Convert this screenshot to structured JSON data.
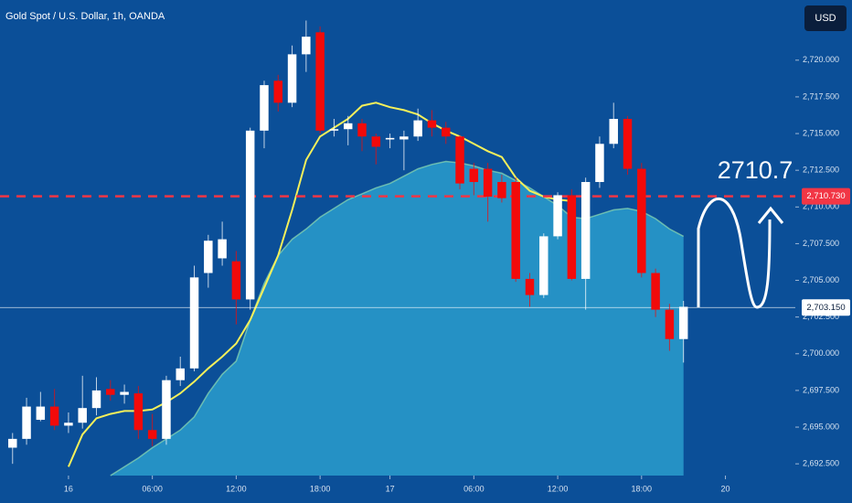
{
  "chart_data": {
    "type": "candlestick",
    "title": "Gold Spot / U.S. Dollar, 1h, OANDA",
    "currency": "USD",
    "annotation": "2710.7",
    "up_color": "#ffffff",
    "down_color": "#f20a0a",
    "background": "#0b4f98",
    "grid": false,
    "xlim": [
      -0.9,
      56.0
    ],
    "ylim": [
      2691.7,
      2724.1
    ],
    "xticks": [
      {
        "value": 4,
        "label": "16"
      },
      {
        "value": 10,
        "label": "06:00"
      },
      {
        "value": 16,
        "label": "12:00"
      },
      {
        "value": 22,
        "label": "18:00"
      },
      {
        "value": 27,
        "label": "17"
      },
      {
        "value": 33,
        "label": "06:00"
      },
      {
        "value": 39,
        "label": "12:00"
      },
      {
        "value": 45,
        "label": "18:00"
      },
      {
        "value": 51,
        "label": "20"
      }
    ],
    "yticks": [
      {
        "value": 2692.5,
        "label": "2,692.500"
      },
      {
        "value": 2695,
        "label": "2,695.000"
      },
      {
        "value": 2697.5,
        "label": "2,697.500"
      },
      {
        "value": 2700,
        "label": "2,700.000"
      },
      {
        "value": 2702.5,
        "label": "2,702.500"
      },
      {
        "value": 2705,
        "label": "2,705.000"
      },
      {
        "value": 2707.5,
        "label": "2,707.500"
      },
      {
        "value": 2710,
        "label": "2,710.000"
      },
      {
        "value": 2712.5,
        "label": "2,712.500"
      },
      {
        "value": 2715,
        "label": "2,715.000"
      },
      {
        "value": 2717.5,
        "label": "2,717.500"
      },
      {
        "value": 2720,
        "label": "2,720.000"
      }
    ],
    "last_price": {
      "value": 2703.15,
      "label": "2,703.150",
      "color": "#ffffff"
    },
    "level": {
      "value": 2710.73,
      "label": "2,710.730",
      "color": "#f23645"
    },
    "open": [
      2693.6,
      2694.2,
      2695.5,
      2696.4,
      2695.1,
      2695.3,
      2696.3,
      2697.6,
      2697.2,
      2697.3,
      2694.8,
      2694.2,
      2698.2,
      2699.0,
      2705.5,
      2706.5,
      2706.3,
      2703.7,
      2715.2,
      2718.6,
      2717.1,
      2720.4,
      2721.9,
      2715.2,
      2715.3,
      2715.7,
      2714.8,
      2714.6,
      2714.6,
      2714.8,
      2715.9,
      2715.4,
      2714.8,
      2712.6,
      2712.6,
      2711.7,
      2711.7,
      2705.1,
      2704.0,
      2708.0,
      2710.8,
      2705.1,
      2711.7,
      2714.3,
      2716.0,
      2712.6,
      2705.5,
      2703.0,
      2701.0
    ],
    "high": [
      2694.6,
      2697.0,
      2697.4,
      2697.6,
      2696.0,
      2698.5,
      2698.4,
      2698.2,
      2697.9,
      2697.8,
      2695.9,
      2698.5,
      2699.8,
      2706.0,
      2708.1,
      2709.0,
      2707.0,
      2715.4,
      2718.6,
      2719.0,
      2721.0,
      2722.7,
      2722.3,
      2716.0,
      2716.2,
      2716.0,
      2715.0,
      2715.0,
      2715.2,
      2716.7,
      2716.6,
      2715.8,
      2714.9,
      2713.0,
      2713.0,
      2712.2,
      2712.0,
      2705.5,
      2708.2,
      2711.0,
      2711.2,
      2712.0,
      2714.8,
      2717.1,
      2716.2,
      2713.0,
      2705.8,
      2703.4,
      2703.6
    ],
    "low": [
      2692.5,
      2693.8,
      2695.4,
      2694.8,
      2694.6,
      2694.9,
      2695.8,
      2696.8,
      2696.6,
      2694.2,
      2693.7,
      2693.8,
      2697.8,
      2698.8,
      2704.5,
      2706.0,
      2702.0,
      2703.0,
      2714.0,
      2716.5,
      2716.8,
      2719.2,
      2715.0,
      2714.8,
      2714.2,
      2713.8,
      2712.9,
      2714.0,
      2712.5,
      2714.5,
      2714.8,
      2714.3,
      2711.2,
      2710.8,
      2709.0,
      2710.3,
      2704.9,
      2703.2,
      2703.8,
      2707.8,
      2705.0,
      2703.0,
      2711.3,
      2714.0,
      2712.2,
      2705.2,
      2702.5,
      2700.2,
      2699.4
    ],
    "close": [
      2694.2,
      2696.4,
      2696.4,
      2695.1,
      2695.3,
      2696.3,
      2697.5,
      2697.2,
      2697.4,
      2694.8,
      2694.2,
      2698.2,
      2699.0,
      2705.2,
      2707.7,
      2707.8,
      2703.7,
      2715.2,
      2718.3,
      2717.1,
      2720.4,
      2721.6,
      2715.2,
      2715.3,
      2715.7,
      2714.8,
      2714.1,
      2714.7,
      2714.8,
      2715.9,
      2715.4,
      2714.8,
      2711.6,
      2711.7,
      2710.7,
      2710.6,
      2705.1,
      2704.0,
      2708.0,
      2710.8,
      2705.1,
      2711.7,
      2714.3,
      2716.0,
      2712.6,
      2705.5,
      2703.0,
      2701.0,
      2703.2
    ],
    "overlays": [
      {
        "type": "area",
        "color": "#2a9ccc",
        "line_color": "#8fdcb0",
        "values": [
          null,
          null,
          null,
          null,
          null,
          null,
          null,
          2691.7,
          2692.3,
          2692.9,
          2693.6,
          2694.2,
          2694.8,
          2695.7,
          2697.3,
          2698.6,
          2699.5,
          2702.3,
          2704.8,
          2706.7,
          2707.8,
          2708.5,
          2709.3,
          2709.9,
          2710.5,
          2710.9,
          2711.3,
          2711.6,
          2712.1,
          2712.6,
          2712.9,
          2713.1,
          2713.0,
          2712.8,
          2712.5,
          2712.3,
          2711.8,
          2711.3,
          2710.7,
          2710.1,
          2709.3,
          2709.2,
          2709.5,
          2709.8,
          2709.9,
          2709.7,
          2709.2,
          2708.5,
          2708.0
        ]
      },
      {
        "type": "line",
        "color": "#f5f05a",
        "values": [
          null,
          null,
          null,
          null,
          2692.3,
          2694.5,
          2695.6,
          2695.9,
          2696.1,
          2696.1,
          2696.2,
          2696.7,
          2697.3,
          2698.1,
          2699.0,
          2699.8,
          2700.7,
          2702.3,
          2704.5,
          2706.7,
          2709.8,
          2713.2,
          2714.8,
          2715.4,
          2716.0,
          2716.9,
          2717.1,
          2716.8,
          2716.6,
          2716.3,
          2715.7,
          2715.2,
          2714.8,
          2714.3,
          2713.8,
          2713.4,
          2712.0,
          2711.1,
          2710.7,
          2710.5,
          2710.4,
          null,
          null,
          null,
          null,
          null,
          null,
          null,
          null
        ]
      }
    ]
  }
}
